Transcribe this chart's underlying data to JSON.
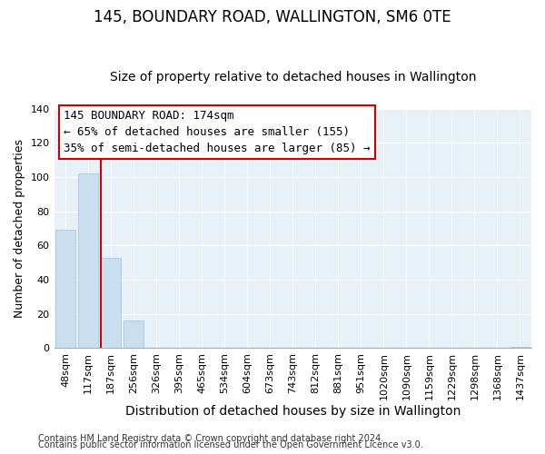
{
  "title": "145, BOUNDARY ROAD, WALLINGTON, SM6 0TE",
  "subtitle": "Size of property relative to detached houses in Wallington",
  "xlabel": "Distribution of detached houses by size in Wallington",
  "ylabel": "Number of detached properties",
  "categories": [
    "48sqm",
    "117sqm",
    "187sqm",
    "256sqm",
    "326sqm",
    "395sqm",
    "465sqm",
    "534sqm",
    "604sqm",
    "673sqm",
    "743sqm",
    "812sqm",
    "881sqm",
    "951sqm",
    "1020sqm",
    "1090sqm",
    "1159sqm",
    "1229sqm",
    "1298sqm",
    "1368sqm",
    "1437sqm"
  ],
  "values": [
    69,
    102,
    53,
    16,
    0,
    0,
    0,
    0,
    0,
    0,
    0,
    0,
    0,
    0,
    0,
    0,
    0,
    0,
    0,
    0,
    1
  ],
  "bar_color": "#c9dff0",
  "bar_edge_color": "#a8c8e8",
  "highlight_line_index": 2,
  "highlight_color": "#cc0000",
  "annotation_title": "145 BOUNDARY ROAD: 174sqm",
  "annotation_line1": "← 65% of detached houses are smaller (155)",
  "annotation_line2": "35% of semi-detached houses are larger (85) →",
  "annotation_box_facecolor": "#ffffff",
  "annotation_box_edgecolor": "#cc0000",
  "ylim": [
    0,
    140
  ],
  "yticks": [
    0,
    20,
    40,
    60,
    80,
    100,
    120,
    140
  ],
  "footer1": "Contains HM Land Registry data © Crown copyright and database right 2024.",
  "footer2": "Contains public sector information licensed under the Open Government Licence v3.0.",
  "background_color": "#ffffff",
  "plot_bg_color": "#e8f0f8",
  "title_fontsize": 12,
  "subtitle_fontsize": 10,
  "xlabel_fontsize": 10,
  "ylabel_fontsize": 9,
  "tick_fontsize": 8,
  "annotation_fontsize": 9,
  "footer_fontsize": 7
}
